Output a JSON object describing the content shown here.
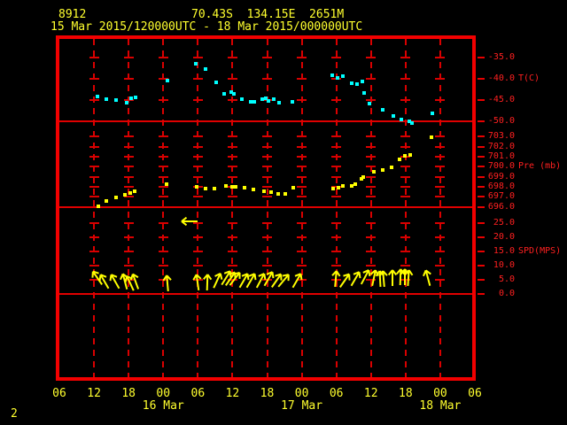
{
  "header": {
    "station_id": "8912",
    "position": "70.43S  134.15E  2651M",
    "time_range": "15 Mar 2015/120000UTC - 18 Mar 2015/000000UTC"
  },
  "footer": {
    "page_number": "2"
  },
  "colors": {
    "background": "#000000",
    "frame_red": "#f20000",
    "grid_red": "#d90000",
    "axis_label_red": "#ff2020",
    "text_yellow": "#ffff2e",
    "temperature_cyan": "#00ffff",
    "pressure_yellow": "#ffff00",
    "wind_yellow": "#ffff00"
  },
  "chart_data": {
    "type": "scatter",
    "title": "Station 8912 time series 15 Mar 2015 12UTC - 18 Mar 2015 00UTC",
    "x_axis": {
      "unit": "hours since 2015-03-15 00UTC",
      "start_hour": 6,
      "end_hour": 78,
      "tick_step_hours": 6,
      "tick_hours": [
        6,
        12,
        18,
        24,
        30,
        36,
        42,
        48,
        54,
        60,
        66,
        72,
        78
      ],
      "tick_labels": [
        "06",
        "12",
        "18",
        "00",
        "06",
        "12",
        "18",
        "00",
        "06",
        "12",
        "18",
        "00",
        "06"
      ],
      "date_labels": [
        {
          "text": "16 Mar",
          "hour": 24
        },
        {
          "text": "17 Mar",
          "hour": 48
        },
        {
          "text": "18 Mar",
          "hour": 72
        }
      ],
      "grid": "dashed-vertical-every-6h"
    },
    "panels": [
      {
        "id": "temperature",
        "unit_label": "T(C)",
        "unit_next_to_tick": -40,
        "yticks": [
          -35,
          -40,
          -45,
          -50
        ],
        "ytick_labels": [
          "-35.0",
          "-40.0",
          "-45.0",
          "-50.0"
        ],
        "series": {
          "name": "temperature",
          "marker": "square",
          "color": "#00ffff",
          "points": [
            [
              12.6,
              -44.2
            ],
            [
              14.1,
              -44.7
            ],
            [
              15.9,
              -44.9
            ],
            [
              17.6,
              -45.6
            ],
            [
              18.4,
              -44.5
            ],
            [
              19.2,
              -44.4
            ],
            [
              24.7,
              -40.4
            ],
            [
              29.7,
              -36.6
            ],
            [
              31.3,
              -37.8
            ],
            [
              33.2,
              -40.8
            ],
            [
              34.6,
              -43.5
            ],
            [
              35.8,
              -43.2
            ],
            [
              36.3,
              -43.5
            ],
            [
              37.6,
              -44.7
            ],
            [
              39.1,
              -45.4
            ],
            [
              39.7,
              -45.4
            ],
            [
              41.2,
              -44.8
            ],
            [
              41.8,
              -44.6
            ],
            [
              42.2,
              -45.2
            ],
            [
              43.2,
              -44.8
            ],
            [
              44.0,
              -45.6
            ],
            [
              46.4,
              -45.4
            ],
            [
              53.3,
              -39.1
            ],
            [
              54.2,
              -39.8
            ],
            [
              55.2,
              -39.5
            ],
            [
              56.7,
              -41.1
            ],
            [
              57.6,
              -41.3
            ],
            [
              58.5,
              -40.7
            ],
            [
              58.8,
              -43.4
            ],
            [
              59.8,
              -45.7
            ],
            [
              62.0,
              -47.3
            ],
            [
              63.8,
              -48.6
            ],
            [
              65.3,
              -49.6
            ],
            [
              66.7,
              -49.9
            ],
            [
              67.1,
              -50.4
            ],
            [
              70.6,
              -48.1
            ]
          ]
        }
      },
      {
        "id": "pressure",
        "unit_label": "Pre (mb)",
        "unit_next_to_tick": 700,
        "yticks": [
          703,
          702,
          701,
          700,
          699,
          698,
          697,
          696
        ],
        "ytick_labels": [
          "703.0",
          "702.0",
          "701.0",
          "700.0",
          "699.0",
          "698.0",
          "697.0",
          "696.0"
        ],
        "series": {
          "name": "pressure",
          "marker": "square",
          "color": "#ffff00",
          "points": [
            [
              12.7,
              696.1
            ],
            [
              14.2,
              696.6
            ],
            [
              15.9,
              696.9
            ],
            [
              17.4,
              697.2
            ],
            [
              18.3,
              697.4
            ],
            [
              19.1,
              697.6
            ],
            [
              24.6,
              698.3
            ],
            [
              29.8,
              698.0
            ],
            [
              31.4,
              697.8
            ],
            [
              32.9,
              697.8
            ],
            [
              34.8,
              698.1
            ],
            [
              35.9,
              698.0
            ],
            [
              36.6,
              698.0
            ],
            [
              38.1,
              697.9
            ],
            [
              39.6,
              697.7
            ],
            [
              41.5,
              697.6
            ],
            [
              42.7,
              697.5
            ],
            [
              43.9,
              697.3
            ],
            [
              45.1,
              697.3
            ],
            [
              46.6,
              697.9
            ],
            [
              53.5,
              697.8
            ],
            [
              54.3,
              697.9
            ],
            [
              55.2,
              698.1
            ],
            [
              56.7,
              698.1
            ],
            [
              57.2,
              698.3
            ],
            [
              58.3,
              698.8
            ],
            [
              58.7,
              699.0
            ],
            [
              60.5,
              699.5
            ],
            [
              62.0,
              699.7
            ],
            [
              63.5,
              699.9
            ],
            [
              65.0,
              700.7
            ],
            [
              65.9,
              701.1
            ],
            [
              66.8,
              701.2
            ],
            [
              70.5,
              702.9
            ]
          ]
        }
      },
      {
        "id": "wind_speed",
        "unit_label": "SPD(MPS)",
        "unit_next_to_tick": 15,
        "yticks": [
          25,
          20,
          15,
          10,
          5,
          0
        ],
        "ytick_labels": [
          "25.0",
          "20.0",
          "15.0",
          "10.0",
          "5.0",
          "0.0"
        ],
        "series": {
          "name": "wind",
          "marker": "direction-arrow",
          "color": "#ffff00",
          "arrows_t_speed_dir": [
            [
              12.6,
              5.5,
              -35
            ],
            [
              13.9,
              4.5,
              -30
            ],
            [
              15.6,
              4.5,
              -30
            ],
            [
              17.4,
              4.2,
              -15
            ],
            [
              18.3,
              3.8,
              -25
            ],
            [
              19.2,
              4.2,
              -20
            ],
            [
              24.7,
              3.8,
              -5
            ],
            [
              28.6,
              25.9,
              -90
            ],
            [
              29.9,
              4.0,
              -8
            ],
            [
              31.6,
              4.0,
              2
            ],
            [
              33.3,
              4.8,
              25
            ],
            [
              34.8,
              5.5,
              32
            ],
            [
              35.6,
              5.3,
              35
            ],
            [
              36.4,
              5.3,
              38
            ],
            [
              38.0,
              4.8,
              30
            ],
            [
              39.1,
              4.6,
              30
            ],
            [
              40.8,
              4.8,
              28
            ],
            [
              42.2,
              5.2,
              30
            ],
            [
              43.6,
              4.8,
              35
            ],
            [
              44.9,
              4.8,
              40
            ],
            [
              47.2,
              4.8,
              30
            ],
            [
              53.9,
              5.2,
              5
            ],
            [
              55.4,
              4.6,
              35
            ],
            [
              57.2,
              5.2,
              30
            ],
            [
              58.9,
              5.8,
              28
            ],
            [
              60.5,
              5.5,
              12
            ],
            [
              61.5,
              5.3,
              -3
            ],
            [
              62.2,
              5.3,
              -5
            ],
            [
              63.7,
              5.5,
              0
            ],
            [
              65.1,
              5.8,
              2
            ],
            [
              65.8,
              5.8,
              0
            ],
            [
              66.5,
              5.6,
              4
            ],
            [
              69.8,
              5.6,
              -15
            ]
          ]
        }
      }
    ]
  }
}
